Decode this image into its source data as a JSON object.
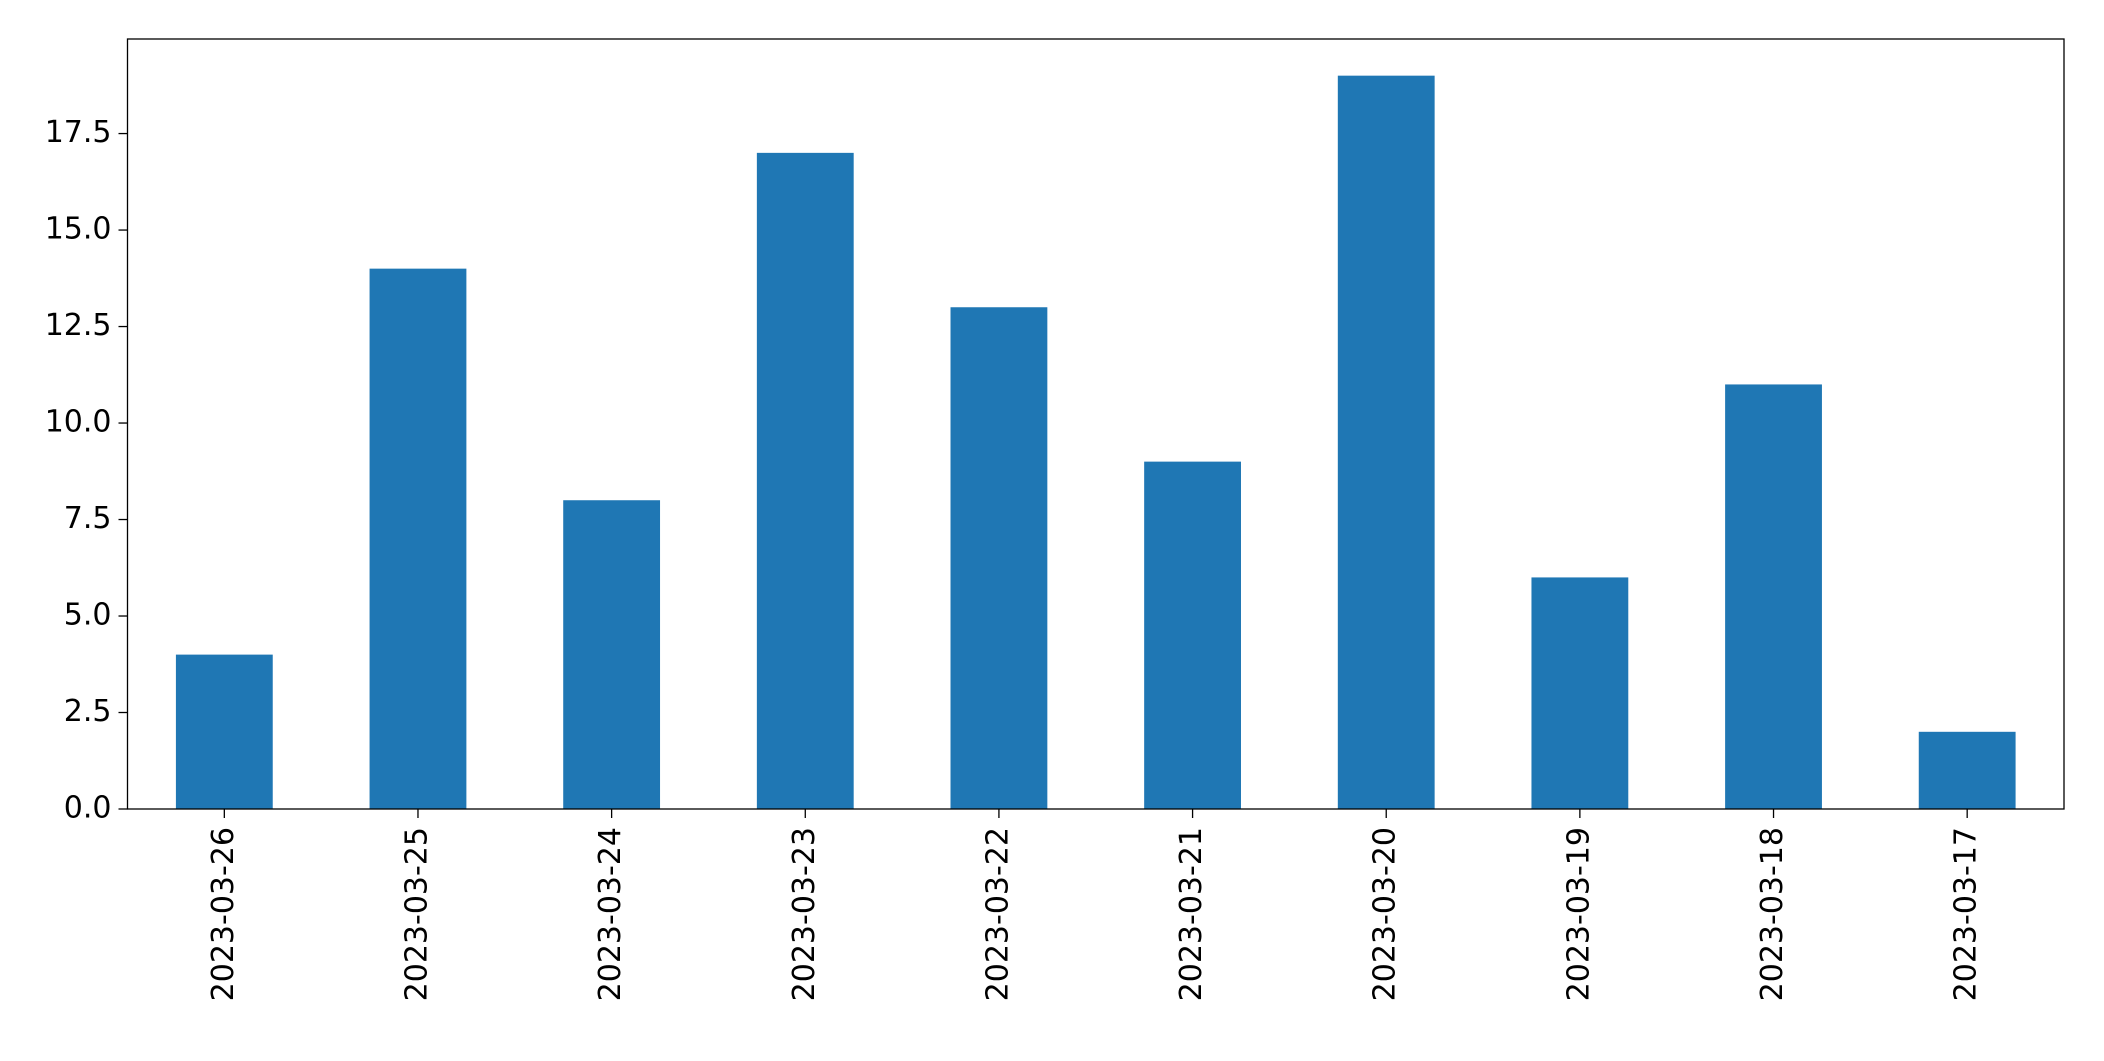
{
  "chart_data": {
    "type": "bar",
    "categories": [
      "2023-03-26",
      "2023-03-25",
      "2023-03-24",
      "2023-03-23",
      "2023-03-22",
      "2023-03-21",
      "2023-03-20",
      "2023-03-19",
      "2023-03-18",
      "2023-03-17"
    ],
    "values": [
      4,
      14,
      8,
      17,
      13,
      9,
      19,
      6,
      11,
      2
    ],
    "color": "#1f77b4",
    "ylim": [
      0,
      19.95
    ],
    "yticks": [
      {
        "value": 0,
        "label": "0.0"
      },
      2.5,
      {
        "value": 5,
        "label": "5.0"
      },
      7.5,
      {
        "value": 10,
        "label": "10.0"
      },
      12.5,
      {
        "value": 15,
        "label": "15.0"
      },
      17.5
    ],
    "grid": false
  }
}
